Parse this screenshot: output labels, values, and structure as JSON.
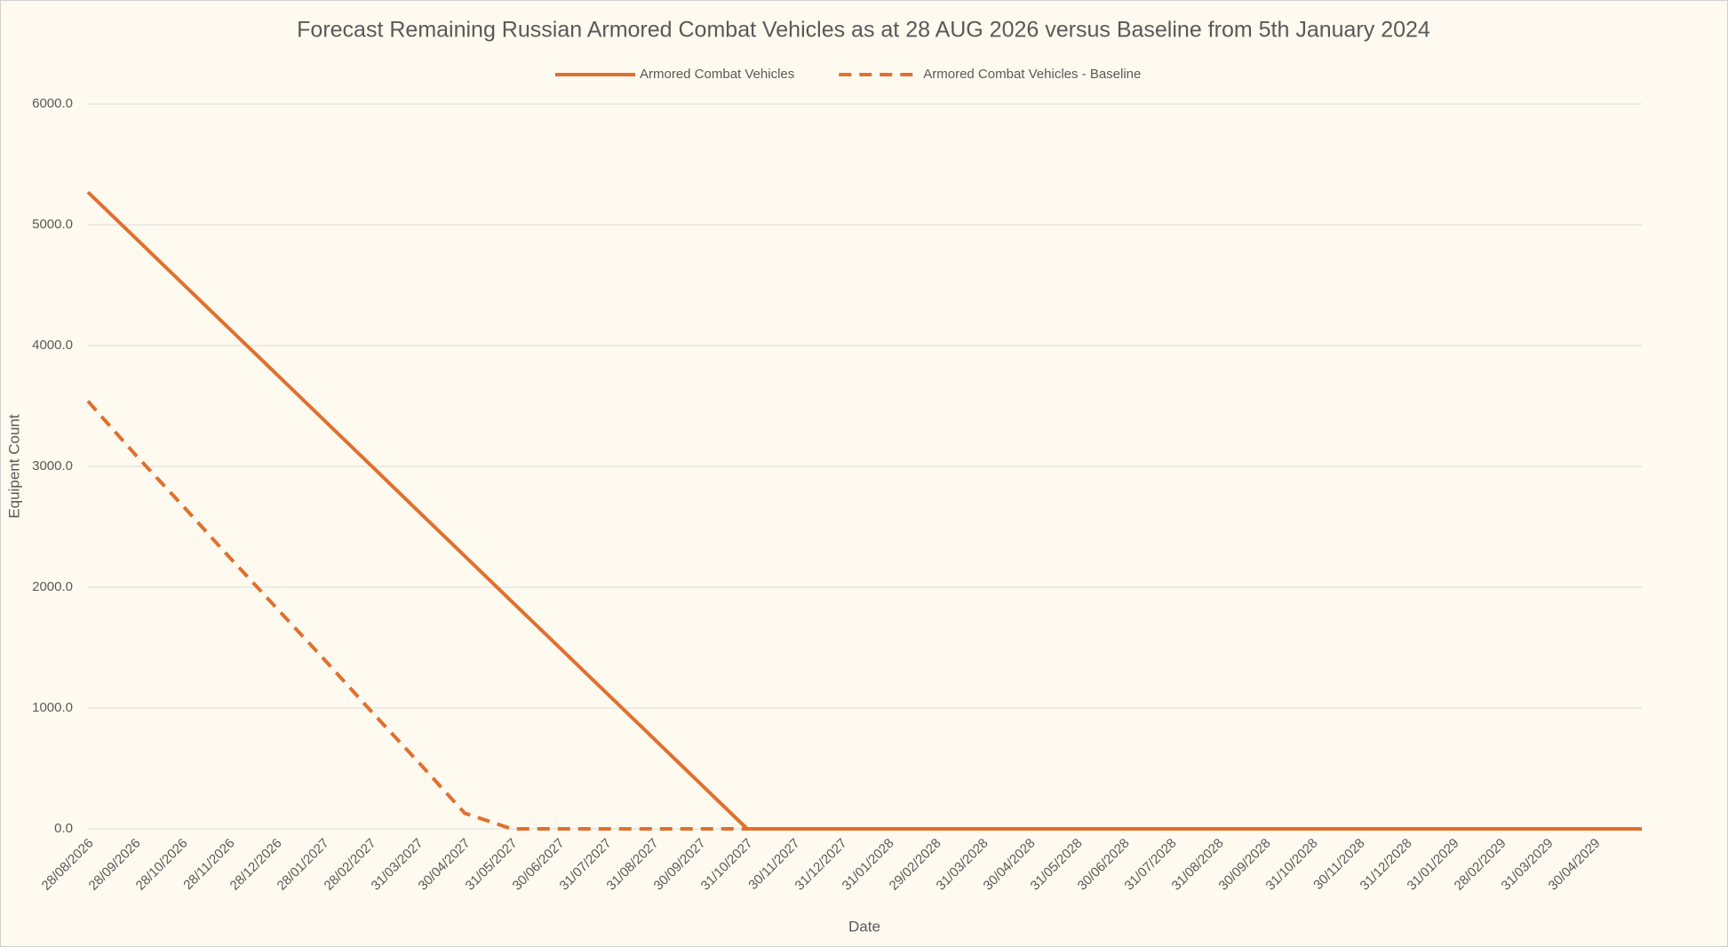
{
  "chart_data": {
    "type": "line",
    "title": "Forecast Remaining Russian Armored Combat Vehicles as at 28 AUG 2026 versus Baseline from 5th January 2024",
    "x_label": "Date",
    "y_label": "Equipent Count",
    "categories": [
      "28/08/2026",
      "28/09/2026",
      "28/10/2026",
      "28/11/2026",
      "28/12/2026",
      "28/01/2027",
      "28/02/2027",
      "31/03/2027",
      "30/04/2027",
      "31/05/2027",
      "30/06/2027",
      "31/07/2027",
      "31/08/2027",
      "30/09/2027",
      "31/10/2027",
      "30/11/2027",
      "31/12/2027",
      "31/01/2028",
      "29/02/2028",
      "31/03/2028",
      "30/04/2028",
      "31/05/2028",
      "30/06/2028",
      "31/07/2028",
      "31/08/2028",
      "30/09/2028",
      "31/10/2028",
      "30/11/2028",
      "31/12/2028",
      "31/01/2029",
      "28/02/2029",
      "31/03/2029",
      "30/04/2029",
      null
    ],
    "series": [
      {
        "name": "Armored Combat Vehicles",
        "color": "#e0702f",
        "dash": false,
        "values": [
          5270,
          4894,
          4517,
          4141,
          3765,
          3388,
          3012,
          2635,
          2259,
          1882,
          1506,
          1129,
          753,
          376,
          0,
          0,
          0,
          0,
          0,
          0,
          0,
          0,
          0,
          0,
          0,
          0,
          0,
          0,
          0,
          0,
          0,
          0,
          0,
          0
        ]
      },
      {
        "name": "Armored Combat Vehicles - Baseline",
        "color": "#e0702f",
        "dash": true,
        "values": [
          3540,
          3100,
          2680,
          2250,
          1830,
          1410,
          980,
          560,
          130,
          0,
          0,
          0,
          0,
          0,
          0,
          0,
          0,
          0,
          0,
          0,
          0,
          0,
          0,
          0,
          0,
          0,
          0,
          0,
          0,
          0,
          0,
          0,
          0,
          0
        ]
      }
    ],
    "ylim": [
      0,
      6000
    ],
    "yticks": [
      {
        "value": 0,
        "label": "0.0"
      },
      {
        "value": 1000,
        "label": "1000.0"
      },
      {
        "value": 2000,
        "label": "2000.0"
      },
      {
        "value": 3000,
        "label": "3000.0"
      },
      {
        "value": 4000,
        "label": "4000.0"
      },
      {
        "value": 5000,
        "label": "5000.0"
      },
      {
        "value": 6000,
        "label": "6000.0"
      }
    ],
    "grid": true,
    "legend": "top"
  }
}
